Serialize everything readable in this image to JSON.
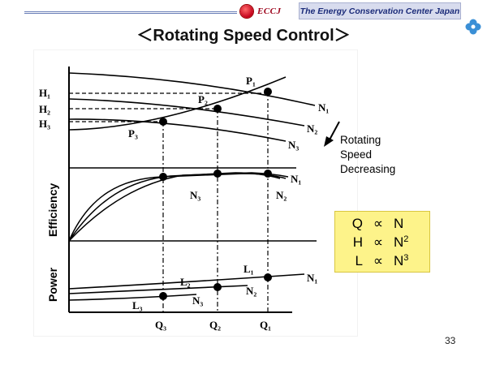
{
  "header": {
    "logo_text": "ECCJ",
    "organization": "The Energy Conservation Center Japan"
  },
  "slide": {
    "title": "＜Rotating Speed Control＞",
    "page_number": "33"
  },
  "diagram": {
    "head_levels": [
      "H₁",
      "H₂",
      "H₃"
    ],
    "head_curve_labels": [
      "N₁",
      "N₂",
      "N₃"
    ],
    "operating_points": [
      "P₁",
      "P₂",
      "P₃"
    ],
    "efficiency_curve_labels": [
      "N₁",
      "N₂",
      "N₃"
    ],
    "power_curve_labels": [
      "N₁",
      "N₂",
      "N₃"
    ],
    "power_points": [
      "L₁",
      "L₂",
      "L₃"
    ],
    "flow_labels": [
      "Q₃",
      "Q₂",
      "Q₁"
    ],
    "efficiency_axis_title": "Efficiency",
    "power_axis_title": "Power",
    "annotation": [
      "Rotating",
      "Speed",
      "Decreasing"
    ]
  },
  "laws": {
    "proportional_symbol": "∝",
    "rows": [
      {
        "left": "Q",
        "right": "N",
        "exp": ""
      },
      {
        "left": "H",
        "right": "N",
        "exp": "2"
      },
      {
        "left": "L",
        "right": "N",
        "exp": "3"
      }
    ]
  }
}
